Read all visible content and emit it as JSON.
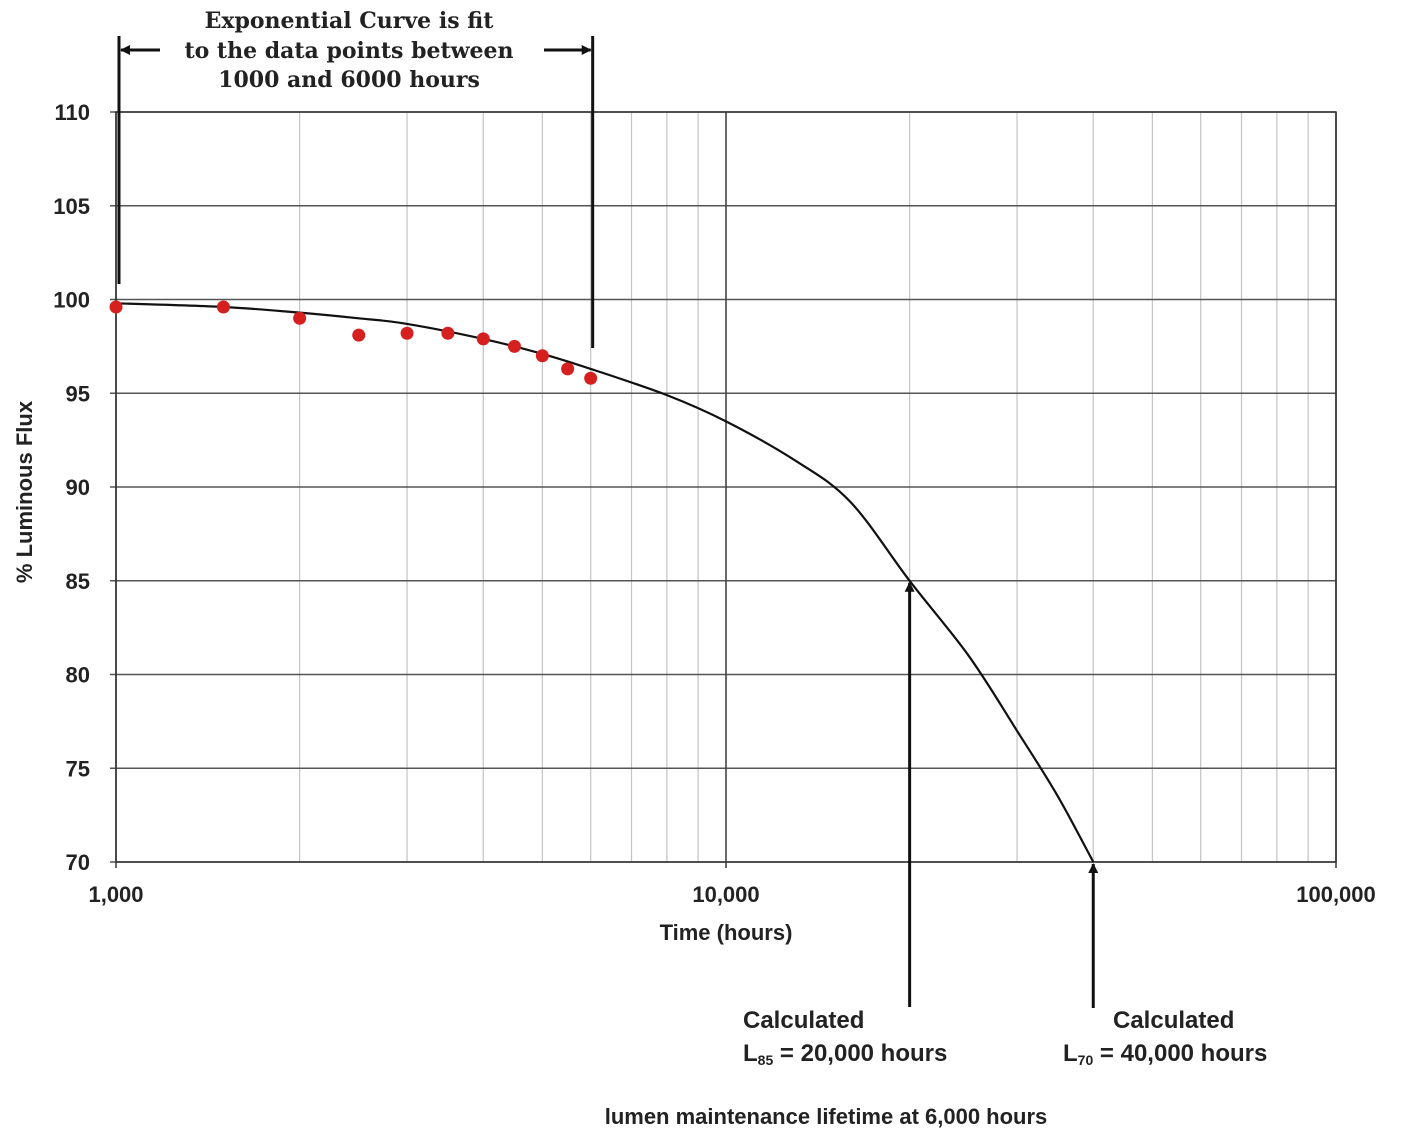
{
  "chart_data": {
    "type": "scatter",
    "xscale": "log",
    "xlim": [
      1000,
      100000
    ],
    "ylim": [
      70,
      110
    ],
    "xlabel": "Time (hours)",
    "ylabel": "% Luminous Flux",
    "grid": true,
    "x_ticks": [
      {
        "value": 1000,
        "label": "1,000"
      },
      {
        "value": 10000,
        "label": "10,000"
      },
      {
        "value": 100000,
        "label": "100,000"
      }
    ],
    "y_ticks": [
      {
        "value": 70,
        "label": "70"
      },
      {
        "value": 75,
        "label": "75"
      },
      {
        "value": 80,
        "label": "80"
      },
      {
        "value": 85,
        "label": "85"
      },
      {
        "value": 90,
        "label": "90"
      },
      {
        "value": 95,
        "label": "95"
      },
      {
        "value": 100,
        "label": "100"
      },
      {
        "value": 105,
        "label": "105"
      },
      {
        "value": 110,
        "label": "110"
      }
    ],
    "series": [
      {
        "kind": "points",
        "color": "#d62020",
        "x": [
          1000,
          1500,
          2000,
          2500,
          3000,
          3500,
          4000,
          4500,
          5000,
          5500,
          6000
        ],
        "y": [
          99.6,
          99.6,
          99.0,
          98.1,
          98.2,
          98.2,
          97.9,
          97.5,
          97.0,
          96.3,
          95.8
        ]
      },
      {
        "kind": "curve",
        "color": "#111111",
        "x": [
          1000,
          1500,
          2000,
          2500,
          3000,
          4000,
          5000,
          6000,
          8000,
          10000,
          13000,
          16000,
          20000,
          25000,
          30000,
          35000,
          40000
        ],
        "y": [
          99.8,
          99.6,
          99.3,
          99.0,
          98.7,
          97.9,
          97.1,
          96.3,
          94.9,
          93.5,
          91.4,
          89.2,
          85.0,
          81.0,
          77.0,
          73.5,
          70.0
        ]
      }
    ],
    "annotations": {
      "fit_range": {
        "x_start": 1000,
        "x_end": 6000,
        "lines": [
          "Exponential Curve is fit",
          "to the data points between",
          "1000 and 6000 hours"
        ]
      },
      "l85": {
        "x": 20000,
        "y": 85,
        "line1": "Calculated",
        "prefix": "L",
        "sub": "85",
        "suffix": " = 20,000 hours"
      },
      "l70": {
        "x": 40000,
        "y": 70,
        "line1": "Calculated",
        "prefix": "L",
        "sub": "70",
        "suffix": " = 40,000 hours"
      }
    },
    "footer": "lumen maintenance lifetime at 6,000 hours"
  }
}
